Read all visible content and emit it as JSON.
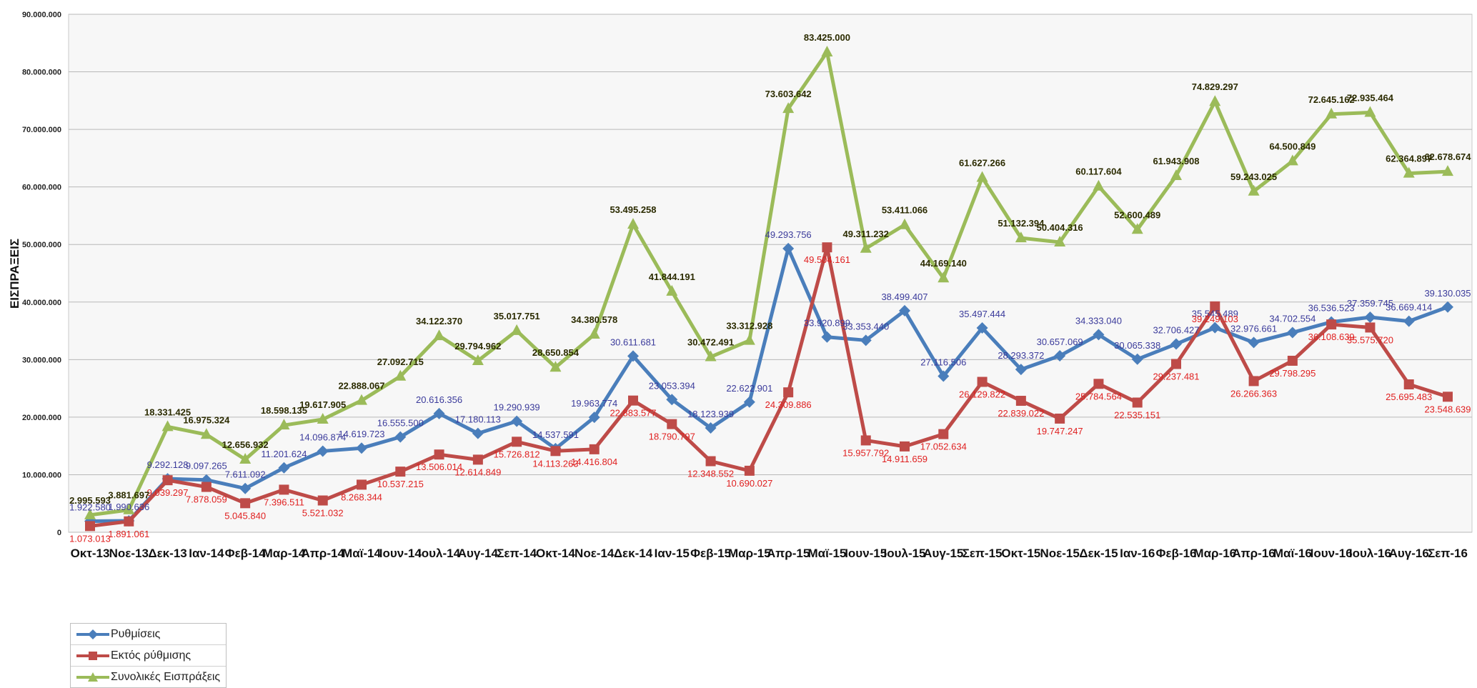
{
  "chart_data": {
    "type": "line",
    "ylabel": "ΕΙΣΠΡΑΞΕΙΣ",
    "ylim": [
      0,
      90000000
    ],
    "y_ticks": [
      "0",
      "10.000.000",
      "20.000.000",
      "30.000.000",
      "40.000.000",
      "50.000.000",
      "60.000.000",
      "70.000.000",
      "80.000.000",
      "90.000.000"
    ],
    "grid": true,
    "legend_position": "bottom-left",
    "categories": [
      "Οκτ-13",
      "Νοε-13",
      "Δεκ-13",
      "Ιαν-14",
      "Φεβ-14",
      "Μαρ-14",
      "Απρ-14",
      "Μαϊ-14",
      "Ιουν-14",
      "Ιουλ-14",
      "Αυγ-14",
      "Σεπ-14",
      "Οκτ-14",
      "Νοε-14",
      "Δεκ-14",
      "Ιαν-15",
      "Φεβ-15",
      "Μαρ-15",
      "Απρ-15",
      "Μαϊ-15",
      "Ιουν-15",
      "Ιουλ-15",
      "Αυγ-15",
      "Σεπ-15",
      "Οκτ-15",
      "Νοε-15",
      "Δεκ-15",
      "Ιαν-16",
      "Φεβ-16",
      "Μαρ-16",
      "Απρ-16",
      "Μαϊ-16",
      "Ιουν-16",
      "Ιουλ-16",
      "Αυγ-16",
      "Σεπ-16"
    ],
    "series": [
      {
        "name": "Ρυθμίσεις",
        "color": "#4a7ebb",
        "label_color": "#3b3b9b",
        "marker": "diamond",
        "values": [
          1922580,
          1990636,
          9292128,
          9097265,
          7611092,
          11201624,
          14096874,
          14619723,
          16555500,
          20616356,
          17180113,
          19290939,
          14537591,
          19963774,
          30611681,
          23053394,
          18123939,
          22622901,
          49293756,
          33920899,
          33353440,
          38499407,
          27116506,
          35497444,
          28293372,
          30657069,
          34333040,
          30065338,
          32706427,
          35545489,
          32976661,
          34702554,
          36536523,
          37359745,
          36669414,
          39130035
        ],
        "labels": [
          "1.922.580",
          "1.990.636",
          "9.292.128",
          "9.097.265",
          "7.611.092",
          "11.201.624",
          "14.096.874",
          "14.619.723",
          "16.555.500",
          "20.616.356",
          "17.180.113",
          "19.290.939",
          "14.537.591",
          "19.963.774",
          "30.611.681",
          "23.053.394",
          "18.123.939",
          "22.622.901",
          "49.293.756",
          "33.920.899",
          "33.353.440",
          "38.499.407",
          "27.116.506",
          "35.497.444",
          "28.293.372",
          "30.657.069",
          "34.333.040",
          "30.065.338",
          "32.706.427",
          "35.545.489",
          "32.976.661",
          "34.702.554",
          "36.536.523",
          "37.359.745",
          "36.669.414",
          "39.130.035"
        ]
      },
      {
        "name": "Εκτός ρύθμισης",
        "color": "#be4b48",
        "label_color": "#e02020",
        "marker": "square",
        "values": [
          1073013,
          1891061,
          9039297,
          7878059,
          5045840,
          7396511,
          5521032,
          8268344,
          10537215,
          13506014,
          12614849,
          15726812,
          14113263,
          14416804,
          22883577,
          18790797,
          12348552,
          10690027,
          24309886,
          49504161,
          15957792,
          14911659,
          17052634,
          26129822,
          22839022,
          19747247,
          25784564,
          22535151,
          29237481,
          39249103,
          26266363,
          29798295,
          36108639,
          35575720,
          25695483,
          23548639
        ],
        "labels": [
          "1.073.013",
          "1.891.061",
          "9.039.297",
          "7.878.059",
          "5.045.840",
          "7.396.511",
          "5.521.032",
          "8.268.344",
          "10.537.215",
          "13.506.014",
          "12.614.849",
          "15.726.812",
          "14.113.263",
          "14.416.804",
          "22.883.577",
          "18.790.797",
          "12.348.552",
          "10.690.027",
          "24.309.886",
          "49.504.161",
          "15.957.792",
          "14.911.659",
          "17.052.634",
          "26.129.822",
          "22.839.022",
          "19.747.247",
          "25.784.564",
          "22.535.151",
          "29.237.481",
          "39.249.103",
          "26.266.363",
          "29.798.295",
          "36.108.639",
          "35.575.720",
          "25.695.483",
          "23.548.639"
        ]
      },
      {
        "name": "Συνολικές Εισπράξεις",
        "color": "#9bbb59",
        "label_color": "#2b2b00",
        "marker": "triangle",
        "values": [
          2995593,
          3881697,
          18331425,
          16975324,
          12656932,
          18598135,
          19617905,
          22888067,
          27092715,
          34122370,
          29794962,
          35017751,
          28650854,
          34380578,
          53495258,
          41844191,
          30472491,
          33312928,
          73603642,
          83425000,
          49311232,
          53411066,
          44169140,
          61627266,
          51132394,
          50404316,
          60117604,
          52600489,
          61943908,
          74829297,
          59243025,
          64500849,
          72645162,
          72935464,
          62364897,
          62678674
        ],
        "labels": [
          "2.995.593",
          "3.881.697",
          "18.331.425",
          "16.975.324",
          "12.656.932",
          "18.598.135",
          "19.617.905",
          "22.888.067",
          "27.092.715",
          "34.122.370",
          "29.794.962",
          "35.017.751",
          "28.650.854",
          "34.380.578",
          "53.495.258",
          "41.844.191",
          "30.472.491",
          "33.312.928",
          "73.603.642",
          "83.425.000",
          "49.311.232",
          "53.411.066",
          "44.169.140",
          "61.627.266",
          "51.132.394",
          "50.404.316",
          "60.117.604",
          "52.600.489",
          "61.943.908",
          "74.829.297",
          "59.243.025",
          "64.500.849",
          "72.645.162",
          "72.935.464",
          "62.364.897",
          "62.678.674"
        ]
      }
    ]
  }
}
